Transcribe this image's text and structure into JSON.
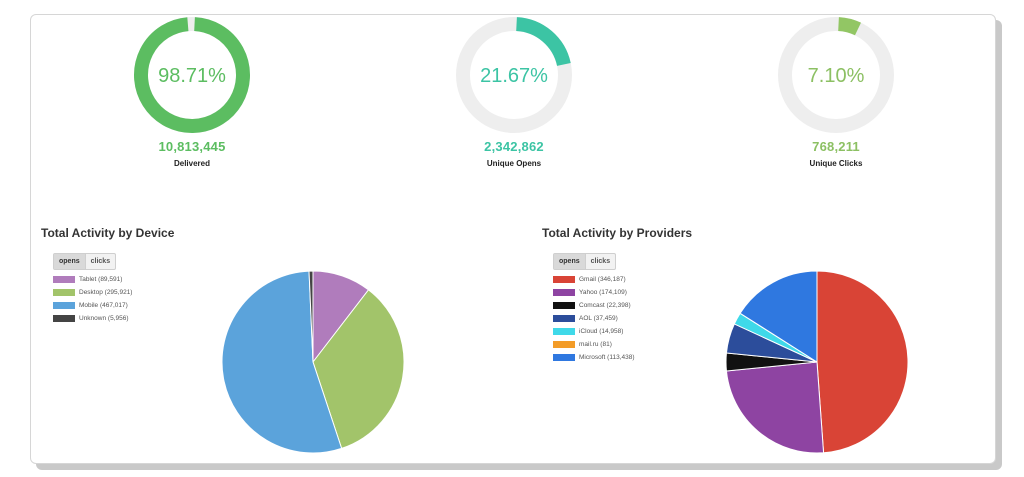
{
  "stats": [
    {
      "percent": "98.71%",
      "fraction": 0.9871,
      "value": "10,813,445",
      "label": "Delivered",
      "color": "#5cbd61",
      "text_color": "#5cbd61"
    },
    {
      "percent": "21.67%",
      "fraction": 0.2167,
      "value": "2,342,862",
      "label": "Unique Opens",
      "color": "#3cc4a4",
      "text_color": "#3cc4a4"
    },
    {
      "percent": "7.10%",
      "fraction": 0.071,
      "value": "768,211",
      "label": "Unique Clicks",
      "color": "#92c664",
      "text_color": "#8cc063"
    }
  ],
  "track_color": "#eeeeee",
  "device": {
    "title": "Total Activity by Device",
    "toggle": {
      "opens": "opens",
      "clicks": "clicks"
    }
  },
  "providers": {
    "title": "Total Activity by Providers",
    "toggle": {
      "opens": "opens",
      "clicks": "clicks"
    }
  },
  "chart_data": [
    {
      "type": "pie",
      "title": "Total Activity by Device",
      "series": [
        {
          "name": "Tablet (89,591)",
          "value": 89591,
          "color": "#b07cbc"
        },
        {
          "name": "Desktop (295,921)",
          "value": 295921,
          "color": "#a2c46a"
        },
        {
          "name": "Mobile (467,017)",
          "value": 467017,
          "color": "#5ba3db"
        },
        {
          "name": "Unknown (5,956)",
          "value": 5956,
          "color": "#444444"
        }
      ],
      "legend": "top-left"
    },
    {
      "type": "pie",
      "title": "Total Activity by Providers",
      "series": [
        {
          "name": "Gmail (346,187)",
          "value": 346187,
          "color": "#d94436"
        },
        {
          "name": "Yahoo (174,109)",
          "value": 174109,
          "color": "#8e44a2"
        },
        {
          "name": "Comcast (22,398)",
          "value": 22398,
          "color": "#111111"
        },
        {
          "name": "AOL (37,459)",
          "value": 37459,
          "color": "#2c4d9b"
        },
        {
          "name": "iCloud (14,958)",
          "value": 14958,
          "color": "#3fd9e9"
        },
        {
          "name": "mail.ru (81)",
          "value": 81,
          "color": "#f39c28"
        },
        {
          "name": "Microsoft (113,438)",
          "value": 113438,
          "color": "#2f78e0"
        }
      ],
      "legend": "top-left"
    }
  ]
}
